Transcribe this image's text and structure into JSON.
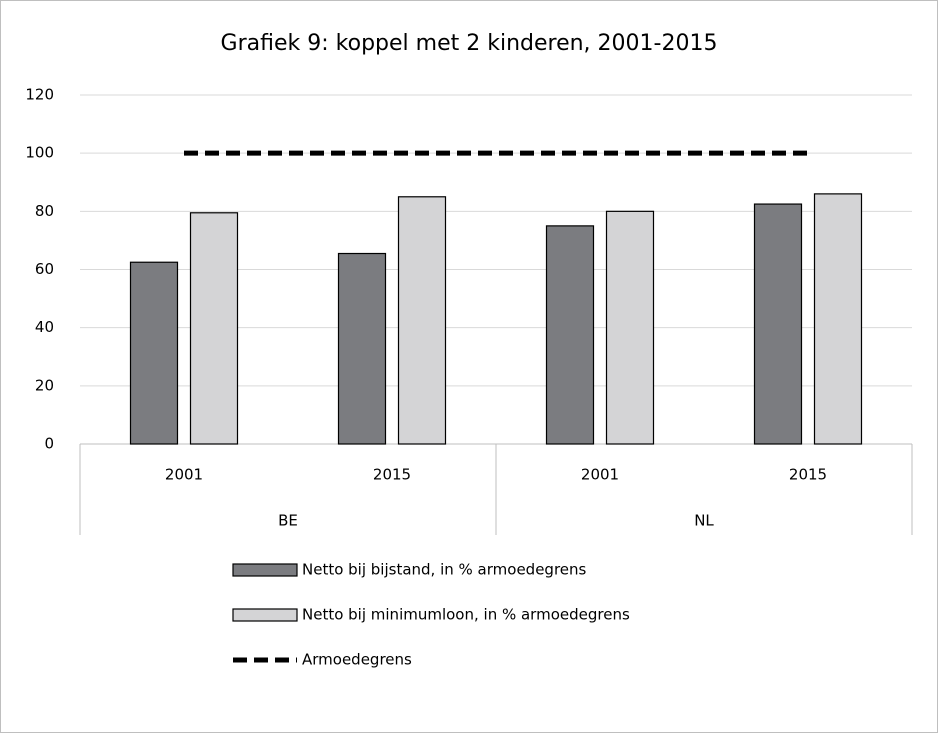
{
  "chart_data": {
    "type": "bar",
    "title": "Grafiek 9: koppel met 2 kinderen, 2001-2015",
    "categories": [
      "2001",
      "2015",
      "2001",
      "2015"
    ],
    "groups": [
      "BE",
      "NL"
    ],
    "series": [
      {
        "name": "Netto bij bijstand, in % armoedegrens",
        "type": "bar",
        "color": "#7b7c80",
        "values": [
          62.5,
          65.5,
          75,
          82.5
        ]
      },
      {
        "name": "Netto bij minimumloon, in % armoedegrens",
        "type": "bar",
        "color": "#d4d4d6",
        "values": [
          79.5,
          85,
          80,
          86
        ]
      },
      {
        "name": "Armoedegrens",
        "type": "line",
        "color": "#000000",
        "values": [
          100,
          100,
          100,
          100
        ]
      }
    ],
    "ylim": [
      0,
      120
    ],
    "yticks": [
      0,
      20,
      40,
      60,
      80,
      100,
      120
    ],
    "grid": true,
    "legend": "bottom"
  }
}
